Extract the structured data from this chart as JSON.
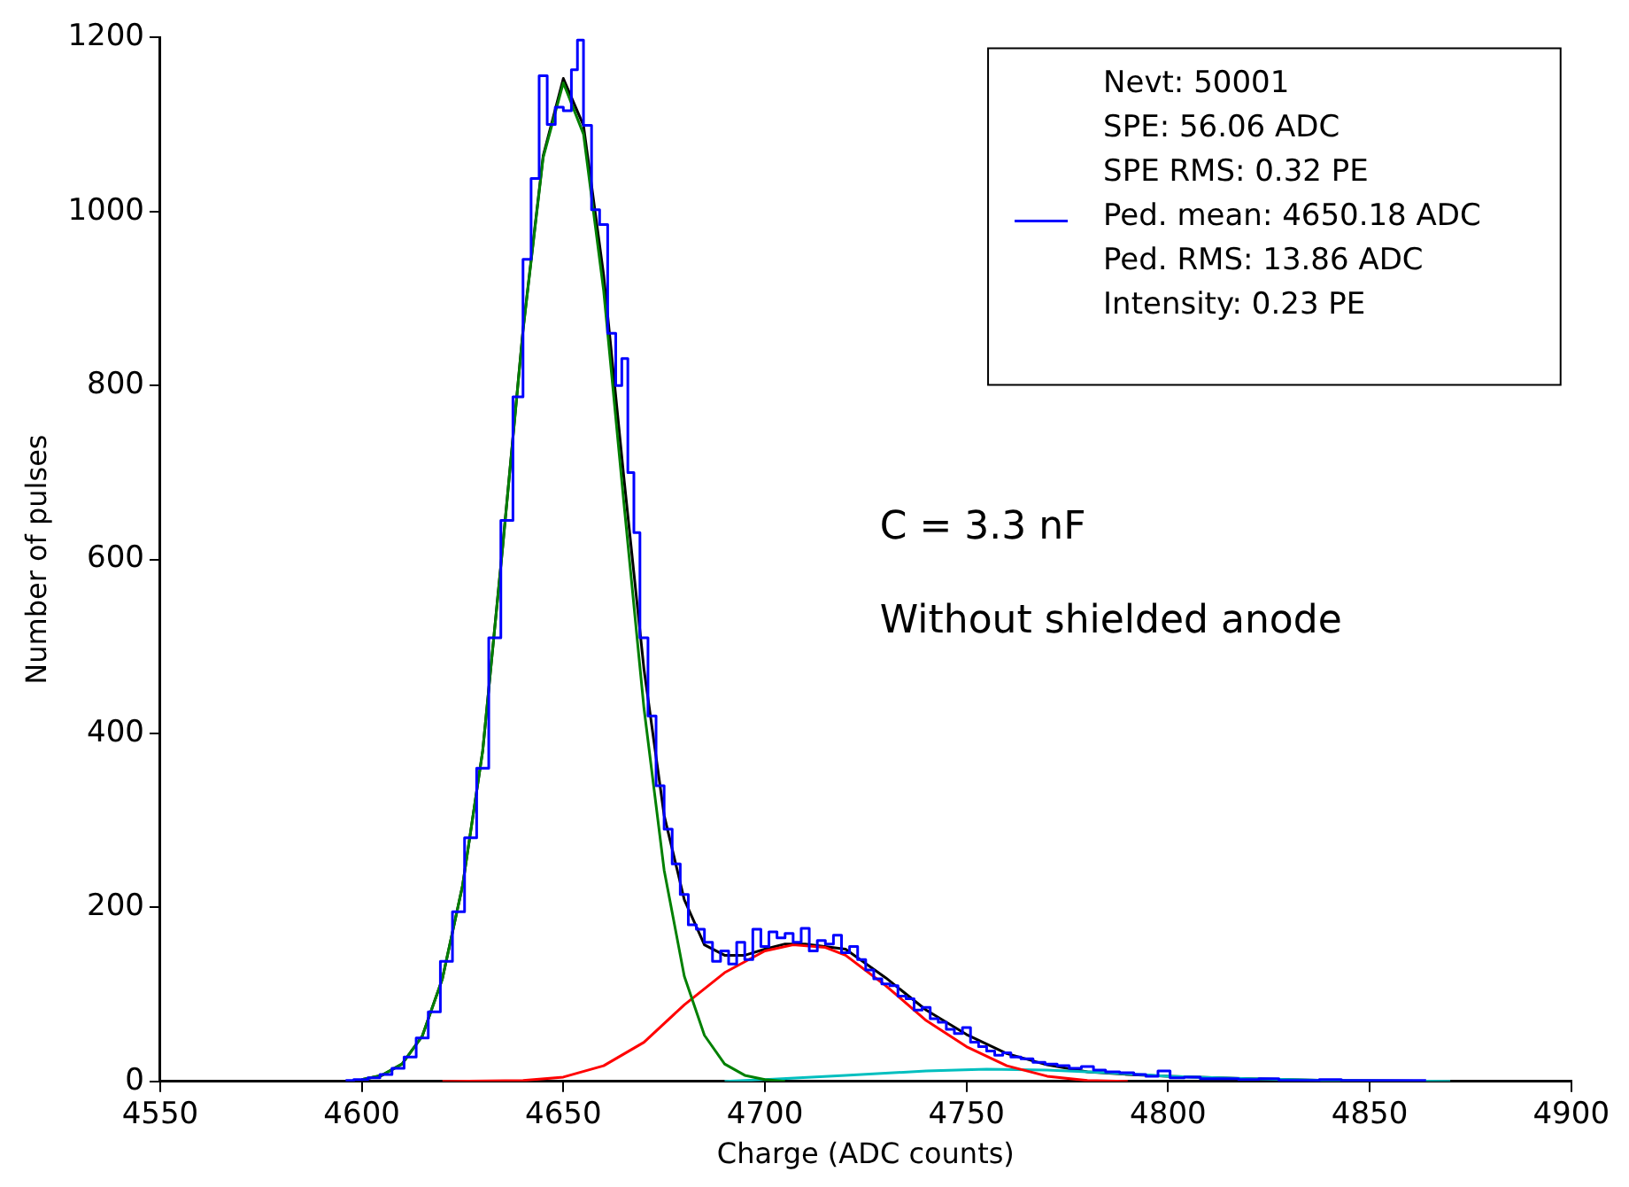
{
  "chart_data": {
    "type": "line",
    "xlabel": "Charge (ADC counts)",
    "ylabel": "Number of pulses",
    "xlim": [
      4550,
      4900
    ],
    "xticks": [
      4550,
      4600,
      4650,
      4700,
      4750,
      4800,
      4850,
      4900
    ],
    "ylim": [
      0,
      1200
    ],
    "yticks": [
      0,
      200,
      400,
      600,
      800,
      1000,
      1200
    ],
    "grid": false,
    "legend": "top right",
    "marker": "none",
    "annotations": [
      "C = 3.3 nF",
      "Without shielded anode"
    ],
    "series": [
      {
        "type": "step",
        "name": "Nevt: 50001\nSPE: 56.06 ADC\nSPE RMS: 0.32 PE\nPed. mean: 4650.18 ADC\nPed. RMS: 13.86 ADC\nIntensity: 0.23 PE",
        "color": "#0000ff",
        "x": [
          4596,
          4600,
          4603,
          4606,
          4609,
          4612,
          4615,
          4618,
          4621,
          4624,
          4627,
          4630,
          4633,
          4636,
          4639,
          4641,
          4643,
          4645,
          4647,
          4649,
          4651,
          4653,
          4654,
          4656,
          4658,
          4660,
          4662,
          4664,
          4665,
          4667,
          4668,
          4670,
          4672,
          4674,
          4676,
          4678,
          4680,
          4682,
          4684,
          4686,
          4688,
          4690,
          4692,
          4694,
          4696,
          4698,
          4700,
          4702,
          4704,
          4706,
          4708,
          4710,
          4712,
          4714,
          4716,
          4718,
          4720,
          4722,
          4724,
          4726,
          4728,
          4730,
          4732,
          4734,
          4736,
          4738,
          4740,
          4742,
          4744,
          4746,
          4748,
          4750,
          4752,
          4754,
          4756,
          4758,
          4760,
          4762,
          4765,
          4768,
          4771,
          4774,
          4777,
          4780,
          4783,
          4786,
          4790,
          4793,
          4796,
          4799,
          4802,
          4806,
          4810,
          4815,
          4820,
          4825,
          4830,
          4835,
          4840,
          4846,
          4852,
          4858,
          4864
        ],
        "values": [
          1,
          2,
          4,
          8,
          15,
          28,
          50,
          80,
          138,
          195,
          280,
          360,
          510,
          645,
          787,
          945,
          1038,
          1156,
          1100,
          1120,
          1116,
          1163,
          1197,
          1099,
          1002,
          985,
          860,
          800,
          831,
          700,
          631,
          510,
          420,
          340,
          290,
          250,
          215,
          180,
          175,
          160,
          138,
          150,
          135,
          160,
          140,
          175,
          155,
          172,
          165,
          170,
          160,
          176,
          150,
          162,
          158,
          168,
          148,
          155,
          140,
          128,
          118,
          112,
          110,
          98,
          95,
          82,
          85,
          72,
          68,
          60,
          55,
          62,
          45,
          40,
          35,
          30,
          33,
          28,
          26,
          22,
          20,
          18,
          15,
          17,
          13,
          11,
          10,
          8,
          6,
          12,
          4,
          5,
          3,
          3,
          2,
          3,
          1,
          1,
          2,
          1,
          1,
          1,
          1
        ]
      },
      {
        "type": "line",
        "color": "#008000",
        "x": [
          4600,
          4605,
          4610,
          4615,
          4620,
          4625,
          4630,
          4635,
          4640,
          4645,
          4650,
          4655,
          4660,
          4665,
          4670,
          4675,
          4680,
          4685,
          4690,
          4695,
          4700,
          4705
        ],
        "values": [
          2,
          7,
          20,
          52,
          118,
          225,
          380,
          616,
          863,
          1062,
          1148,
          1089,
          909,
          666,
          429,
          243,
          121,
          53,
          20,
          7,
          2,
          0
        ]
      },
      {
        "type": "line",
        "color": "#ff0000",
        "x": [
          4620,
          4640,
          4650,
          4660,
          4670,
          4680,
          4690,
          4700,
          4707,
          4715,
          4720,
          4730,
          4740,
          4750,
          4760,
          4770,
          4780,
          4790
        ],
        "values": [
          0,
          1,
          5,
          18,
          45,
          88,
          125,
          150,
          157,
          154,
          145,
          110,
          70,
          40,
          18,
          6,
          1,
          0
        ]
      },
      {
        "type": "line",
        "color": "#00bfbf",
        "x": [
          4690,
          4700,
          4720,
          4740,
          4755,
          4770,
          4785,
          4800,
          4820,
          4840,
          4870
        ],
        "values": [
          0,
          2,
          7,
          12,
          14,
          13,
          10,
          6,
          3,
          1,
          0
        ]
      },
      {
        "type": "line",
        "color": "#000000",
        "x": [
          4600,
          4605,
          4610,
          4615,
          4620,
          4625,
          4630,
          4635,
          4640,
          4645,
          4650,
          4655,
          4660,
          4665,
          4670,
          4675,
          4680,
          4685,
          4690,
          4695,
          4700,
          4705,
          4710,
          4720,
          4730,
          4740,
          4750,
          4760,
          4770,
          4780,
          4790,
          4800,
          4820,
          4840,
          4870
        ],
        "values": [
          2,
          7,
          20,
          52,
          118,
          225,
          380,
          617,
          864,
          1064,
          1153,
          1099,
          927,
          695,
          474,
          306,
          209,
          157,
          145,
          145,
          152,
          158,
          158,
          152,
          119,
          82,
          54,
          32,
          19,
          11,
          8,
          6,
          3,
          1,
          0
        ]
      }
    ]
  }
}
